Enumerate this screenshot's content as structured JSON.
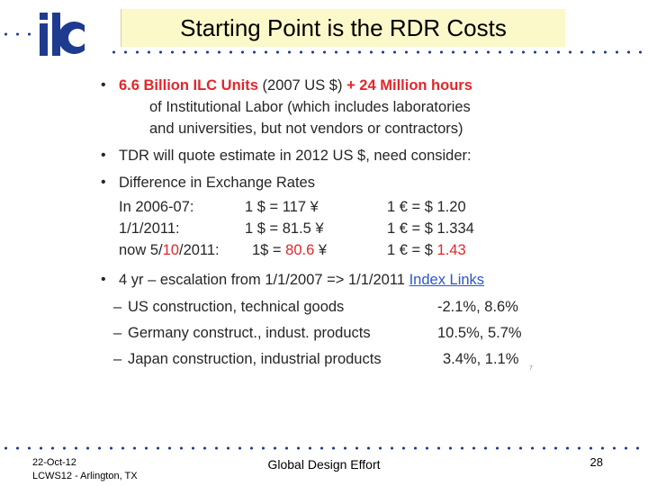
{
  "title": "Starting Point is the RDR Costs",
  "logo": {
    "name": "ilc",
    "color": "#1f3b8f"
  },
  "colors": {
    "accent_red": "#e3262b",
    "link_blue": "#2b56c9",
    "title_bg": "#fbf8c9",
    "dots": "#1f3b8f"
  },
  "bullets": {
    "b1": {
      "red_part1": "6.6 Billion ILC Units",
      "mid": " (2007 US $) ",
      "red_part2": "+ 24 Million hours",
      "line2": "of Institutional Labor (which includes laboratories",
      "line3": "and universities, but not vendors or contractors)"
    },
    "b2": "TDR will quote estimate in 2012 US $, need consider:",
    "b3": "Difference in Exchange Rates",
    "rates": [
      {
        "date": "In 2006-07:",
        "yen": "1 $ =  117 ¥",
        "eur": "1 €  = $ 1.20"
      },
      {
        "date": "1/1/2011:",
        "yen": "1 $ = 81.5 ¥",
        "eur": "1 €  = $ 1.334"
      }
    ],
    "rate_now": {
      "date_a": "now 5/",
      "date_b": "10",
      "date_c": "/2011:",
      "yen_a": "1$ = ",
      "yen_b": "80.6",
      "yen_c": " ¥",
      "eur_a": "1 €  = $ ",
      "eur_b": "1.43"
    },
    "b4": {
      "text": "4 yr – escalation from 1/1/2007 => 1/1/2011 ",
      "link": "Index Links"
    },
    "sub": [
      {
        "label": "US construction, technical goods",
        "value": "-2.1%, 8.6%"
      },
      {
        "label": "Germany construct., indust. products",
        "value": "10.5%, 5.7%"
      },
      {
        "label": "Japan construction, industrial products",
        "value": "3.4%, 1.1%"
      }
    ],
    "mark": "7"
  },
  "footer": {
    "date": "22-Oct-12",
    "event": "LCWS12 - Arlington, TX",
    "center": "Global Design Effort",
    "page": "28"
  }
}
